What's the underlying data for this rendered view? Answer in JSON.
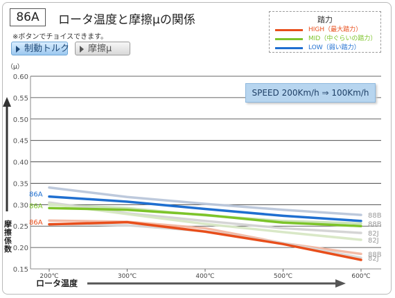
{
  "header": {
    "badge": "86A",
    "title": "ロータ温度と摩擦μの関係",
    "note": "※ボタンでチョイスできます。"
  },
  "buttons": [
    {
      "label": "制動トルク",
      "active": true
    },
    {
      "label": "摩擦μ",
      "active": false
    }
  ],
  "legend": {
    "title": "踏力",
    "entries": [
      {
        "label": "HIGH（最大踏力）",
        "color": "#e84e1b"
      },
      {
        "label": "MID（中ぐらいの踏力）",
        "color": "#7dc42a"
      },
      {
        "label": "LOW（弱い踏力）",
        "color": "#1f6fd0"
      }
    ]
  },
  "speed_label": "SPEED 200Km/h ⇒ 100Km/h",
  "chart_data": {
    "type": "line",
    "x": [
      200,
      300,
      400,
      500,
      600
    ],
    "x_tick_labels": [
      "200℃",
      "300℃",
      "400℃",
      "500℃",
      "600℃"
    ],
    "xlabel": "ロータ温度",
    "ylabel": "摩擦係数",
    "y_unit": "（μ）",
    "ylim": [
      0.15,
      0.6
    ],
    "y_ticks": [
      0.15,
      0.2,
      0.25,
      0.3,
      0.35,
      0.4,
      0.45,
      0.5,
      0.55,
      0.6
    ],
    "y_tick_labels": [
      "0.15",
      "0.20",
      "0.25",
      "0.30",
      "0.35",
      "0.40",
      "0.45",
      "0.50",
      "0.55",
      "0.60"
    ],
    "grid": true,
    "series": [
      {
        "name": "88B",
        "values": [
          0.34,
          0.318,
          0.302,
          0.288,
          0.276
        ],
        "color": "#b9c6da",
        "highlight": false,
        "label_side": "right"
      },
      {
        "name": "88B",
        "values": [
          0.3,
          0.292,
          0.275,
          0.262,
          0.256
        ],
        "color": "#c9e3b4",
        "highlight": false,
        "label_side": "right"
      },
      {
        "name": "82J",
        "values": [
          0.305,
          0.28,
          0.262,
          0.245,
          0.234
        ],
        "color": "#d3d3d3",
        "highlight": false,
        "label_side": "right"
      },
      {
        "name": "82J",
        "values": [
          0.302,
          0.278,
          0.255,
          0.236,
          0.218
        ],
        "color": "#d7e7c4",
        "highlight": false,
        "label_side": "right"
      },
      {
        "name": "88B",
        "values": [
          0.263,
          0.26,
          0.245,
          0.21,
          0.185
        ],
        "color": "#f2b7a2",
        "highlight": false,
        "label_side": "right"
      },
      {
        "name": "82J",
        "values": [
          0.255,
          0.252,
          0.238,
          0.21,
          0.176
        ],
        "color": "#d6d6d6",
        "highlight": false,
        "label_side": "right"
      },
      {
        "name": "86A",
        "values": [
          0.319,
          0.307,
          0.29,
          0.274,
          0.262
        ],
        "color": "#1f6fd0",
        "highlight": true,
        "label_side": "left"
      },
      {
        "name": "86A",
        "values": [
          0.292,
          0.288,
          0.276,
          0.258,
          0.25
        ],
        "color": "#7dc42a",
        "highlight": true,
        "label_side": "left"
      },
      {
        "name": "86A",
        "values": [
          0.254,
          0.259,
          0.237,
          0.208,
          0.171
        ],
        "color": "#e84e1b",
        "highlight": true,
        "label_side": "left"
      }
    ]
  }
}
